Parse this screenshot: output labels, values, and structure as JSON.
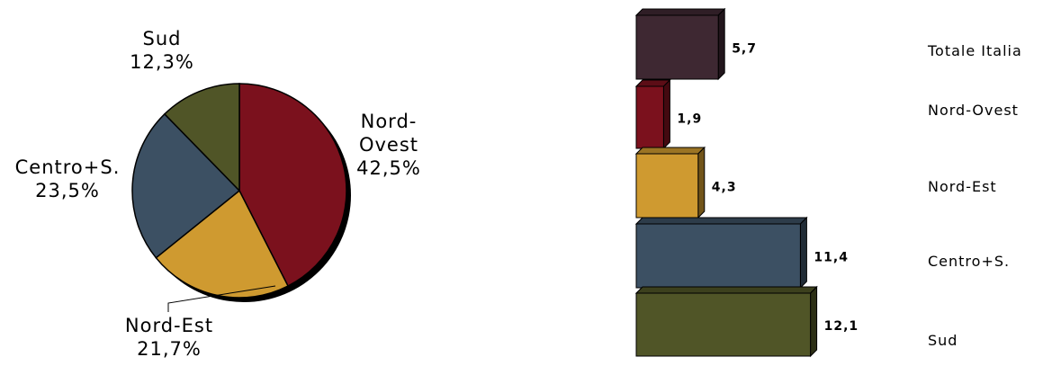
{
  "chart_data": [
    {
      "type": "pie",
      "slices": [
        {
          "label": "Nord-Ovest",
          "label_lines": [
            "Nord-",
            "Ovest"
          ],
          "value": 42.5,
          "value_text": "42,5%",
          "color": "#7b111d"
        },
        {
          "label": "Nord-Est",
          "label_lines": [
            "Nord-Est"
          ],
          "value": 21.7,
          "value_text": "21,7%",
          "color": "#cf9a30"
        },
        {
          "label": "Centro+S.",
          "label_lines": [
            "Centro+S."
          ],
          "value": 23.5,
          "value_text": "23,5%",
          "color": "#3c5063"
        },
        {
          "label": "Sud",
          "label_lines": [
            "Sud"
          ],
          "value": 12.3,
          "value_text": "12,3%",
          "color": "#505527"
        }
      ]
    },
    {
      "type": "bar",
      "orientation": "horizontal",
      "categories": [
        "Totale Italia",
        "Nord-Ovest",
        "Nord-Est",
        "Centro+S.",
        "Sud"
      ],
      "values": [
        5.7,
        1.9,
        4.3,
        11.4,
        12.1
      ],
      "value_labels": [
        "5,7",
        "1,9",
        "4,3",
        "11,4",
        "12,1"
      ],
      "colors": [
        "#3e2832",
        "#7b111d",
        "#cf9a30",
        "#3c5063",
        "#505527"
      ],
      "style": "3d"
    }
  ]
}
